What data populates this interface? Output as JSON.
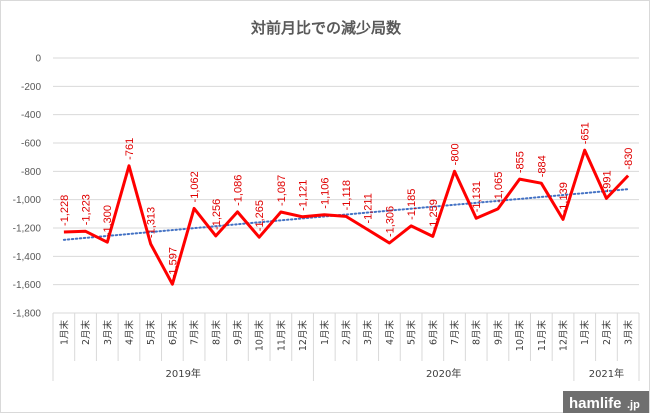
{
  "chart_data": {
    "type": "line",
    "title": "対前月比での減少局数",
    "categories": [
      "1月末",
      "2月末",
      "3月末",
      "4月末",
      "5月末",
      "6月末",
      "7月末",
      "8月末",
      "9月末",
      "10月末",
      "11月末",
      "12月末",
      "1月末",
      "2月末",
      "3月末",
      "4月末",
      "5月末",
      "6月末",
      "7月末",
      "8月末",
      "9月末",
      "10月末",
      "11月末",
      "12月末",
      "1月末",
      "2月末",
      "3月末"
    ],
    "values": [
      -1228,
      -1223,
      -1300,
      -761,
      -1313,
      -1597,
      -1062,
      -1256,
      -1086,
      -1265,
      -1087,
      -1121,
      -1106,
      -1118,
      -1211,
      -1306,
      -1185,
      -1259,
      -800,
      -1131,
      -1065,
      -855,
      -884,
      -1139,
      -651,
      -991,
      -830
    ],
    "data_labels": [
      "-1,228",
      "-1,223",
      "-1,300",
      "-761",
      "-1,313",
      "-1,597",
      "-1,062",
      "-1,256",
      "-1,086",
      "-1,265",
      "-1,087",
      "-1,121",
      "-1,106",
      "-1,118",
      "-1,211",
      "-1,306",
      "-1,185",
      "-1,259",
      "-800",
      "-1,131",
      "-1,065",
      "-855",
      "-884",
      "-1,139",
      "-651",
      "-991",
      "-830"
    ],
    "year_groups": [
      {
        "label": "2019年",
        "count": 12
      },
      {
        "label": "2020年",
        "count": 12
      },
      {
        "label": "2021年",
        "count": 3
      }
    ],
    "yticks": [
      "0",
      "-200",
      "-400",
      "-600",
      "-800",
      "-1,000",
      "-1,200",
      "-1,400",
      "-1,600",
      "-1,800"
    ],
    "ylim": [
      -1800,
      0
    ],
    "trendline": {
      "type": "linear",
      "style": "dotted"
    },
    "grid": true,
    "colors": {
      "series": "#ff0000",
      "trend": "#4472c4",
      "labels": "#e00000",
      "grid": "#d9d9d9",
      "axis_text": "#595959"
    }
  },
  "watermark": {
    "main": "hamlife",
    "suffix": ".jp"
  }
}
